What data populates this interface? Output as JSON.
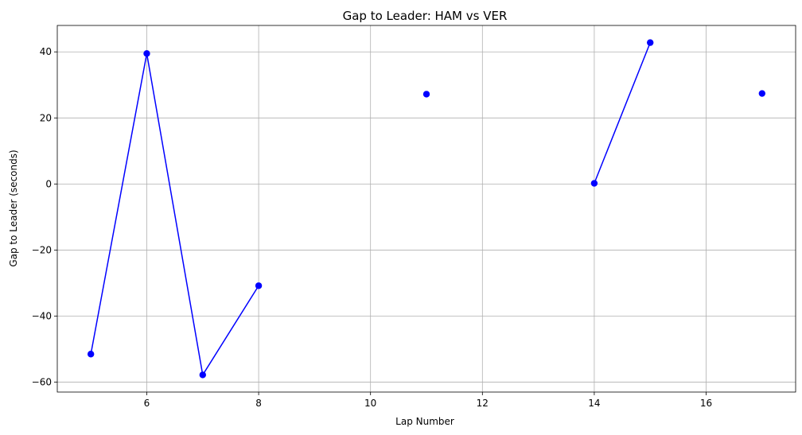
{
  "chart_data": {
    "type": "line",
    "title": "Gap to Leader: HAM vs VER",
    "xlabel": "Lap Number",
    "ylabel": "Gap to Leader (seconds)",
    "xlim": [
      4.4,
      17.6
    ],
    "ylim": [
      -63,
      48
    ],
    "xticks": [
      6,
      8,
      10,
      12,
      14,
      16
    ],
    "yticks": [
      -60,
      -40,
      -20,
      0,
      20,
      40
    ],
    "grid": true,
    "line_color": "#0000ff",
    "marker_color": "#0000ff",
    "segments": [
      [
        [
          5,
          -51.5
        ],
        [
          6,
          39.5
        ],
        [
          7,
          -57.8
        ],
        [
          8,
          -30.8
        ]
      ],
      [
        [
          11,
          27.2
        ]
      ],
      [
        [
          14,
          0.2
        ],
        [
          15,
          42.8
        ]
      ],
      [
        [
          17,
          27.4
        ]
      ]
    ]
  }
}
